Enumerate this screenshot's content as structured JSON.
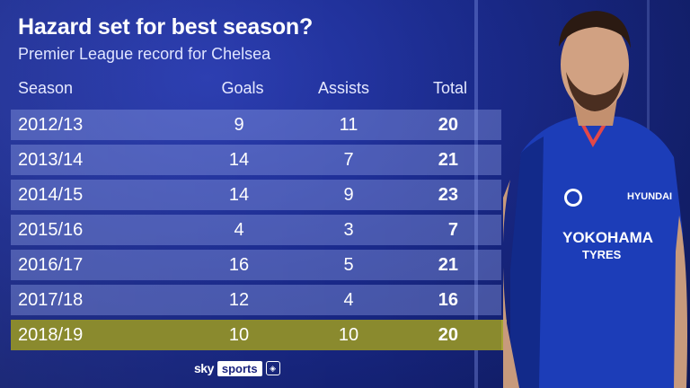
{
  "title": "Hazard set for best season?",
  "subtitle": "Premier League record for Chelsea",
  "headers": {
    "season": "Season",
    "goals": "Goals",
    "assists": "Assists",
    "total": "Total"
  },
  "rows": [
    {
      "season": "2012/13",
      "goals": "9",
      "assists": "11",
      "total": "20"
    },
    {
      "season": "2013/14",
      "goals": "14",
      "assists": "7",
      "total": "21"
    },
    {
      "season": "2014/15",
      "goals": "14",
      "assists": "9",
      "total": "23"
    },
    {
      "season": "2015/16",
      "goals": "4",
      "assists": "3",
      "total": "7"
    },
    {
      "season": "2016/17",
      "goals": "16",
      "assists": "5",
      "total": "21"
    },
    {
      "season": "2017/18",
      "goals": "12",
      "assists": "4",
      "total": "16"
    },
    {
      "season": "2018/19",
      "goals": "10",
      "assists": "10",
      "total": "20"
    }
  ],
  "highlight_color": "#8a8a2e",
  "jersey": {
    "sponsor": "YOKOHAMA",
    "sponsor_sub": "TYRES",
    "sleeve_brand": "HYUNDAI"
  },
  "branding": {
    "sky": "sky",
    "sports": "sports",
    "league_icon": "premier-league-icon"
  }
}
